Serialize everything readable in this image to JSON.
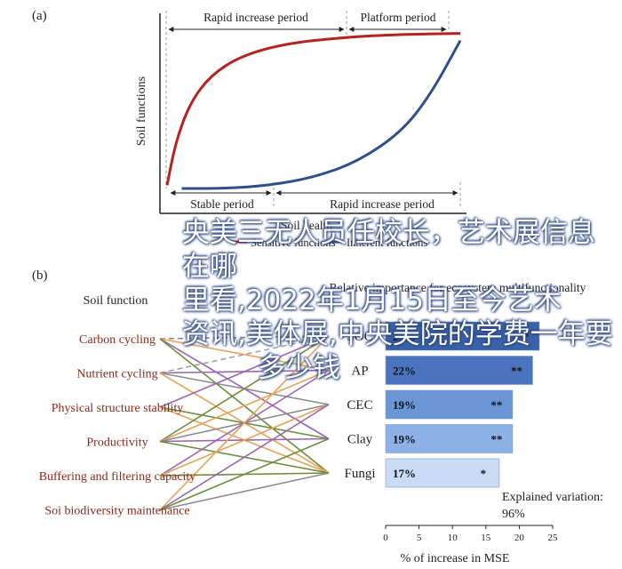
{
  "panel_a": {
    "label": "(a)",
    "ylabel": "Soil functions",
    "periods_top": [
      "Rapid increase period",
      "Platform period"
    ],
    "periods_bottom": [
      "Stable period",
      "Rapid increase period"
    ],
    "xlabel": "Soil health",
    "legend": [
      "Sensitive functions",
      "Inherent functions"
    ]
  },
  "panel_b": {
    "label": "(b)",
    "left_header": "Soil function",
    "right_header": "Relative importance for ecosystem multifunctionality",
    "functions": [
      "Carbon cycling",
      "Nutrient cycling",
      "Physical structure stability",
      "Productivity",
      "Buffering and filtering capacity",
      "Soi biodiversity maintenance"
    ],
    "indicators": [
      "SOC",
      "AP",
      "CEC",
      "Clay",
      "Fungi"
    ],
    "explained_label": "Explained variation:",
    "explained_value": "96%"
  },
  "chart_data": [
    {
      "type": "line",
      "title": "",
      "ylabel": "Soil functions",
      "xlabel": "Soil health",
      "series": [
        {
          "name": "Sensitive functions",
          "color": "#b5221f",
          "points": [
            [
              0.0,
              0.02
            ],
            [
              0.03,
              0.3
            ],
            [
              0.08,
              0.55
            ],
            [
              0.15,
              0.72
            ],
            [
              0.25,
              0.84
            ],
            [
              0.4,
              0.92
            ],
            [
              0.6,
              0.96
            ],
            [
              0.8,
              0.98
            ],
            [
              1.0,
              0.985
            ]
          ]
        },
        {
          "name": "Inherent functions",
          "color": "#2f4f8a",
          "points": [
            [
              0.05,
              0.0
            ],
            [
              0.2,
              0.0
            ],
            [
              0.35,
              0.02
            ],
            [
              0.5,
              0.07
            ],
            [
              0.65,
              0.17
            ],
            [
              0.8,
              0.36
            ],
            [
              0.9,
              0.6
            ],
            [
              1.0,
              0.94
            ]
          ]
        }
      ]
    },
    {
      "type": "bar",
      "orientation": "horizontal",
      "title": "Relative importance for ecosystem multifunctionality",
      "xlabel": "% of increase in MSE",
      "xlim": [
        0,
        25
      ],
      "xticks": [
        "0",
        "5",
        "10",
        "15",
        "20",
        "25"
      ],
      "categories": [
        "SOC",
        "AP",
        "CEC",
        "Clay",
        "Fungi"
      ],
      "values": [
        23,
        22,
        19,
        19,
        17
      ],
      "labels": [
        "23%",
        "22%",
        "19%",
        "19%",
        "17%"
      ],
      "significance": [
        "**",
        "**",
        "**",
        "**",
        "*"
      ],
      "colors": [
        "#3a62a8",
        "#4a74bd",
        "#6b96d6",
        "#8db1e6",
        "#c9dbf5"
      ]
    }
  ],
  "links": [
    {
      "from": 0,
      "to": 0,
      "color": "#8c8c8c",
      "dash": true
    },
    {
      "from": 0,
      "to": 1,
      "color": "#e6a25a",
      "dash": false
    },
    {
      "from": 0,
      "to": 3,
      "color": "#9a66b0",
      "dash": false
    },
    {
      "from": 0,
      "to": 4,
      "color": "#6c8d3c",
      "dash": false
    },
    {
      "from": 1,
      "to": 0,
      "color": "#a2a2a2",
      "dash": true
    },
    {
      "from": 1,
      "to": 1,
      "color": "#9a66b0",
      "dash": false
    },
    {
      "from": 1,
      "to": 2,
      "color": "#8c8c8c",
      "dash": false
    },
    {
      "from": 1,
      "to": 4,
      "color": "#e6a25a",
      "dash": false
    },
    {
      "from": 2,
      "to": 0,
      "color": "#9a66b0",
      "dash": false
    },
    {
      "from": 2,
      "to": 3,
      "color": "#6c8d3c",
      "dash": false
    },
    {
      "from": 2,
      "to": 4,
      "color": "#e6a25a",
      "dash": false
    },
    {
      "from": 3,
      "to": 0,
      "color": "#6c8d3c",
      "dash": false
    },
    {
      "from": 3,
      "to": 1,
      "color": "#e6a25a",
      "dash": false
    },
    {
      "from": 3,
      "to": 2,
      "color": "#8c8c8c",
      "dash": false
    },
    {
      "from": 3,
      "to": 3,
      "color": "#9a66b0",
      "dash": false
    },
    {
      "from": 3,
      "to": 4,
      "color": "#6c8d3c",
      "dash": false
    },
    {
      "from": 4,
      "to": 1,
      "color": "#9a66b0",
      "dash": false
    },
    {
      "from": 4,
      "to": 2,
      "color": "#e6a25a",
      "dash": false
    },
    {
      "from": 4,
      "to": 4,
      "color": "#6c8d3c",
      "dash": false
    },
    {
      "from": 5,
      "to": 0,
      "color": "#e6a25a",
      "dash": false
    },
    {
      "from": 5,
      "to": 2,
      "color": "#9a66b0",
      "dash": false
    },
    {
      "from": 5,
      "to": 3,
      "color": "#6c8d3c",
      "dash": false
    },
    {
      "from": 5,
      "to": 4,
      "color": "#8c8c8c",
      "dash": false
    }
  ],
  "overlay_text": [
    "央美三无人员任校长，艺术展信息在哪",
    "里看,2022年1月15日至今艺术",
    "资讯,美体展,中央美院的学费一年要",
    "多少钱"
  ]
}
